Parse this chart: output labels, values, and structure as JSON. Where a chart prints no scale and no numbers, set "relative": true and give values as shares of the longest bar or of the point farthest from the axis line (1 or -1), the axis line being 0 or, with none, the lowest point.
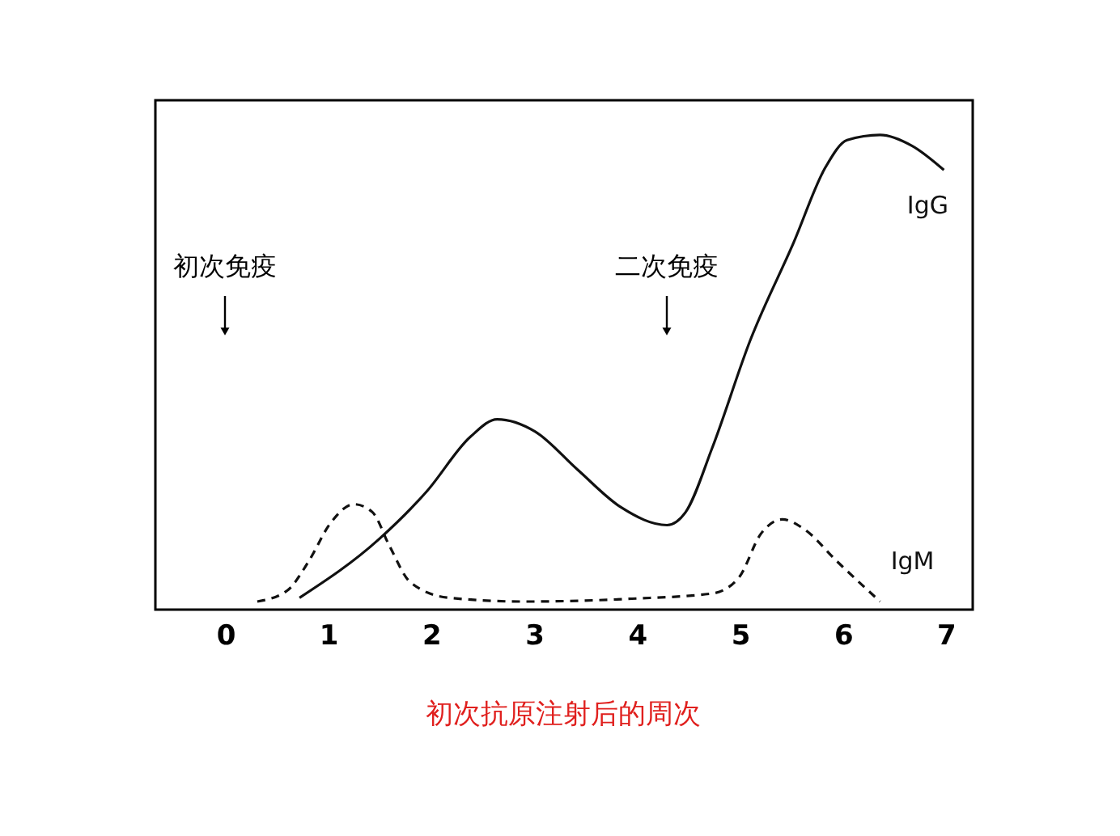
{
  "chart_data": {
    "type": "line",
    "relative": true,
    "xlabel": "初次抗原注射后的周次",
    "xlim": [
      -0.68,
      7.26
    ],
    "xticks": [
      0,
      1,
      2,
      3,
      4,
      5,
      6,
      7
    ],
    "grid": false,
    "tick_labels": "x",
    "annotations": [
      "初次免疫",
      "二次免疫"
    ],
    "series": [
      {
        "name": "IgG",
        "color": "#111111",
        "line_style": "solid",
        "x": [
          0.72,
          1.49,
          1.96,
          2.38,
          2.64,
          3.01,
          3.42,
          3.84,
          4.29,
          4.47,
          4.73,
          5.1,
          5.52,
          5.83,
          6.04,
          6.36,
          6.67,
          6.98
        ],
        "values": [
          0.025,
          0.148,
          0.25,
          0.364,
          0.401,
          0.375,
          0.295,
          0.216,
          0.178,
          0.205,
          0.341,
          0.568,
          0.773,
          0.932,
          0.989,
          1.0,
          0.977,
          0.926
        ]
      },
      {
        "name": "IgM",
        "color": "#111111",
        "line_style": "dashed",
        "x": [
          0.31,
          0.6,
          0.81,
          1.02,
          1.25,
          1.43,
          1.59,
          1.8,
          2.17,
          2.9,
          3.95,
          4.73,
          4.99,
          5.2,
          5.41,
          5.62,
          5.94,
          6.36
        ],
        "values": [
          0.017,
          0.04,
          0.102,
          0.182,
          0.222,
          0.205,
          0.136,
          0.057,
          0.025,
          0.017,
          0.023,
          0.034,
          0.068,
          0.159,
          0.19,
          0.17,
          0.102,
          0.017
        ]
      }
    ]
  }
}
